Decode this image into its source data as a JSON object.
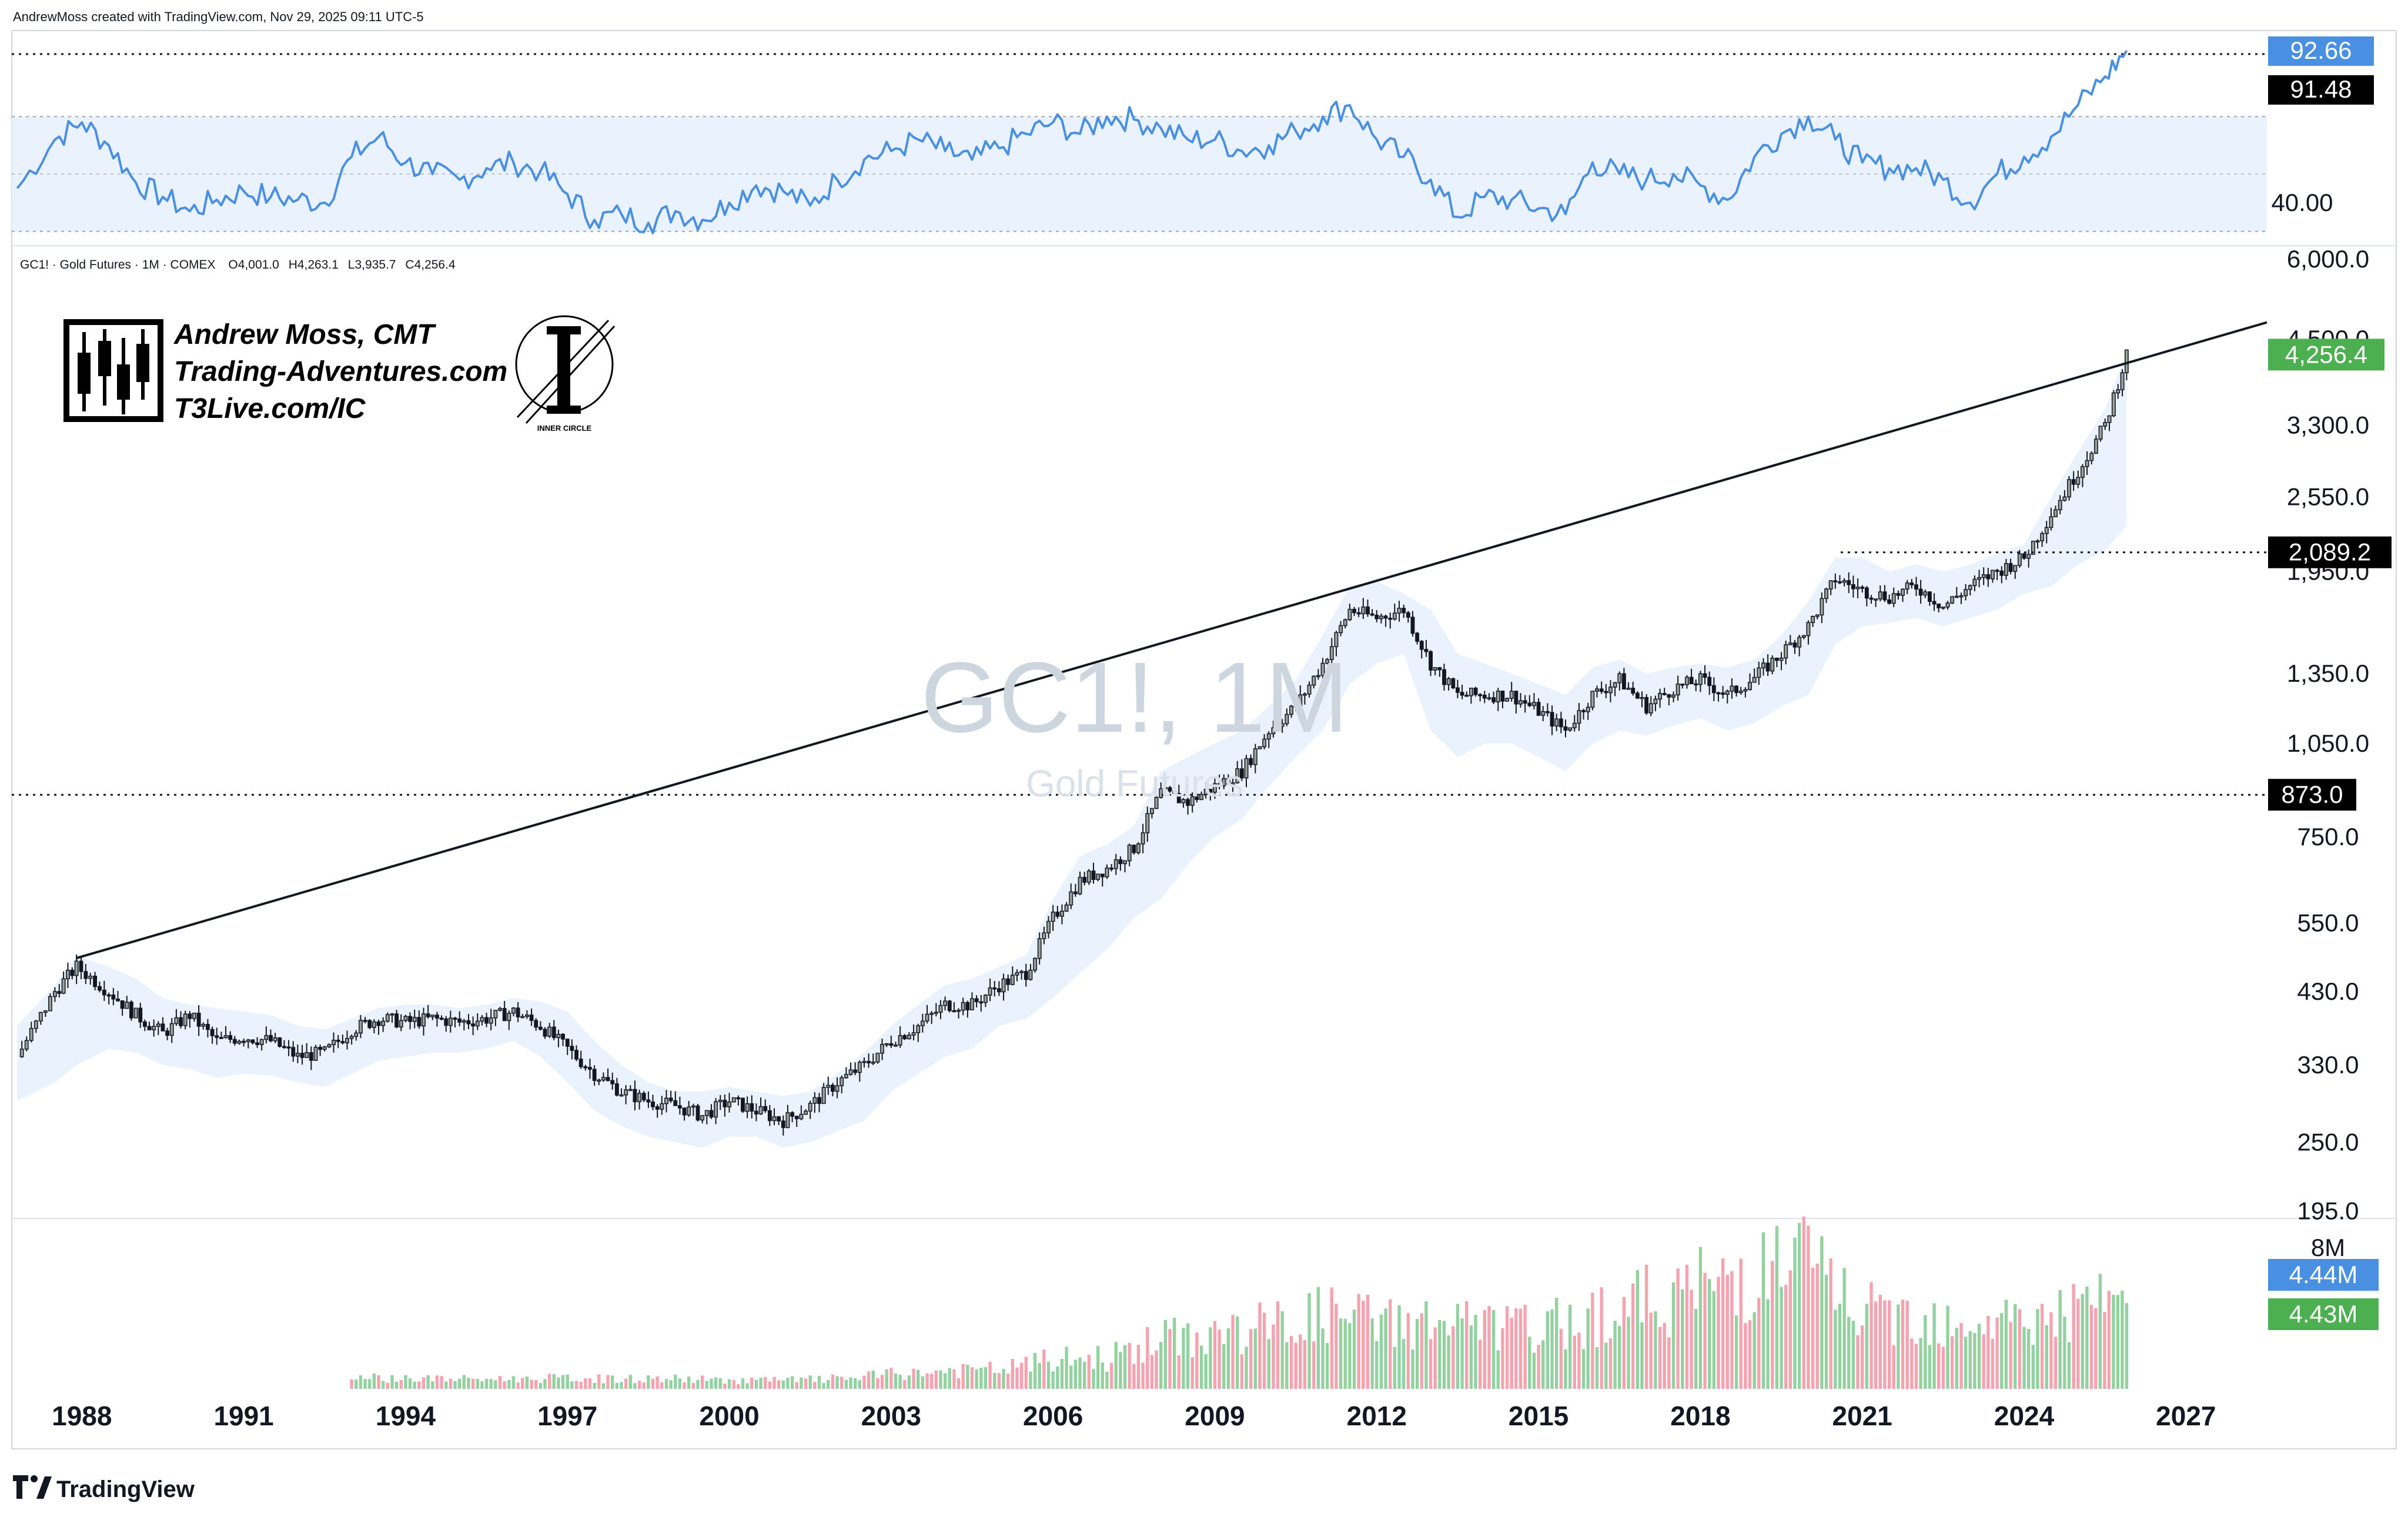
{
  "header": {
    "credit": "AndrewMoss created with TradingView.com, Nov 29, 2025 09:11 UTC-5"
  },
  "symbol_info": {
    "symbol": "GC1!",
    "description": "Gold Futures",
    "interval": "1M",
    "exchange": "COMEX",
    "open_label": "O",
    "open": "4,001.0",
    "high_label": "H",
    "high": "4,263.1",
    "low_label": "L",
    "low": "3,935.7",
    "close_label": "C",
    "close": "4,256.4",
    "line": "GC1! · Gold Futures · 1M · COMEX"
  },
  "watermark": {
    "title": "GC1!, 1M",
    "subtitle": "Gold Futures"
  },
  "branding": {
    "name": "Andrew Moss, CMT",
    "site": "Trading-Adventures.com",
    "site2": "T3Live.com/IC",
    "badge_caption": "INNER CIRCLE",
    "footer_logo": "TradingView"
  },
  "colors": {
    "up": "#26a69a",
    "down": "#ef5350",
    "vol_up": "#93d2a0",
    "vol_down": "#f5a3b0",
    "rsi_line": "#4a90e2",
    "band_fill": "#eaf2fd",
    "price_badge": "#4caf50",
    "rsi_badge": "#4a90e2",
    "level_badge": "#000000"
  },
  "chart_data": [
    {
      "type": "line",
      "panel": "rsi",
      "y_ticks": [
        "40.00"
      ],
      "ylim": [
        25,
        100
      ],
      "levels": [
        70,
        50,
        30
      ],
      "current_badges": [
        "92.66",
        "91.48"
      ],
      "series": [
        {
          "x": [
            1986.8,
            1987.5,
            1988.0,
            1988.5,
            1989.0,
            1989.5,
            1990.0,
            1990.5,
            1991.0,
            1991.5,
            1992.0,
            1992.5,
            1993.0,
            1993.5,
            1994.0,
            1994.5,
            1995.0,
            1995.5,
            1996.0,
            1996.5,
            1997.0,
            1997.5,
            1998.0,
            1998.5,
            1999.0,
            1999.5,
            2000.0,
            2000.5,
            2001.0,
            2001.5,
            2002.0,
            2002.5,
            2003.0,
            2003.5,
            2004.0,
            2004.5,
            2005.0,
            2005.5,
            2006.0,
            2006.5,
            2007.0,
            2007.5,
            2008.0,
            2008.5,
            2009.0,
            2009.5,
            2010.0,
            2010.5,
            2011.0,
            2011.5,
            2012.0,
            2012.5,
            2013.0,
            2013.5,
            2014.0,
            2014.5,
            2015.0,
            2015.5,
            2016.0,
            2016.5,
            2017.0,
            2017.5,
            2018.0,
            2018.5,
            2019.0,
            2019.5,
            2020.0,
            2020.5,
            2021.0,
            2021.5,
            2022.0,
            2022.5,
            2023.0,
            2023.5,
            2024.0,
            2024.5,
            2025.0,
            2025.5,
            2025.9
          ],
          "values": [
            45,
            62,
            68,
            60,
            47,
            42,
            37,
            41,
            44,
            42,
            41,
            40,
            56,
            63,
            54,
            50,
            48,
            52,
            54,
            51,
            43,
            34,
            36,
            33,
            37,
            34,
            40,
            46,
            44,
            39,
            48,
            55,
            58,
            62,
            58,
            55,
            59,
            64,
            68,
            64,
            70,
            69,
            66,
            62,
            62,
            58,
            60,
            65,
            70,
            74,
            62,
            56,
            48,
            35,
            42,
            41,
            38,
            36,
            54,
            50,
            48,
            50,
            46,
            41,
            56,
            64,
            70,
            62,
            54,
            52,
            52,
            48,
            40,
            50,
            56,
            63,
            74,
            84,
            93
          ]
        }
      ]
    },
    {
      "type": "candlestick",
      "panel": "price",
      "scale": "log",
      "title": "",
      "xlabel": "",
      "ylabel": "",
      "x_ticks": [
        "1988",
        "1991",
        "1994",
        "1997",
        "2000",
        "2003",
        "2006",
        "2009",
        "2012",
        "2015",
        "2018",
        "2021",
        "2024",
        "2027"
      ],
      "xlim": [
        1986.7,
        2028.5
      ],
      "y_ticks": [
        "6,000.0",
        "4,500.0",
        "3,300.0",
        "2,550.0",
        "1,950.0",
        "1,350.0",
        "1,050.0",
        "750.0",
        "550.0",
        "430.0",
        "330.0",
        "250.0",
        "195.0"
      ],
      "ylim": [
        190,
        6300
      ],
      "current_price": "4,256.4",
      "levels": [
        {
          "label": "2,089.2",
          "value": 2089.2
        },
        {
          "label": "873.0",
          "value": 873.0
        }
      ],
      "trendline": [
        [
          1987.9,
          485
        ],
        [
          2028.5,
          4780
        ]
      ],
      "x": [
        1986.8,
        1987.5,
        1987.9,
        1988.5,
        1989.0,
        1989.5,
        1990.0,
        1990.5,
        1991.0,
        1991.5,
        1992.0,
        1992.5,
        1993.0,
        1993.5,
        1994.0,
        1994.5,
        1995.0,
        1995.5,
        1996.0,
        1996.5,
        1997.0,
        1997.5,
        1998.0,
        1998.5,
        1999.0,
        1999.5,
        2000.0,
        2000.5,
        2001.0,
        2001.5,
        2002.0,
        2002.5,
        2003.0,
        2003.5,
        2004.0,
        2004.5,
        2005.0,
        2005.5,
        2006.0,
        2006.5,
        2007.0,
        2007.5,
        2008.0,
        2008.5,
        2009.0,
        2009.5,
        2010.0,
        2010.5,
        2011.0,
        2011.5,
        2012.0,
        2012.5,
        2013.0,
        2013.5,
        2014.0,
        2014.5,
        2015.0,
        2015.5,
        2016.0,
        2016.5,
        2017.0,
        2017.5,
        2018.0,
        2018.5,
        2019.0,
        2019.5,
        2020.0,
        2020.5,
        2021.0,
        2021.5,
        2022.0,
        2022.5,
        2023.0,
        2023.5,
        2024.0,
        2024.5,
        2025.0,
        2025.5,
        2025.9
      ],
      "close": [
        340,
        430,
        470,
        430,
        395,
        370,
        395,
        360,
        365,
        360,
        340,
        345,
        375,
        390,
        385,
        390,
        385,
        390,
        400,
        380,
        350,
        320,
        300,
        290,
        285,
        275,
        290,
        280,
        270,
        285,
        310,
        330,
        360,
        380,
        410,
        410,
        440,
        460,
        560,
        640,
        670,
        720,
        880,
        850,
        900,
        950,
        1100,
        1200,
        1400,
        1700,
        1650,
        1700,
        1400,
        1250,
        1250,
        1250,
        1180,
        1100,
        1250,
        1320,
        1200,
        1280,
        1320,
        1250,
        1330,
        1450,
        1600,
        1900,
        1820,
        1780,
        1850,
        1720,
        1850,
        1950,
        2050,
        2400,
        2800,
        3300,
        4256.4
      ],
      "band_upper": [
        380,
        440,
        490,
        470,
        450,
        420,
        410,
        405,
        400,
        395,
        380,
        375,
        390,
        405,
        410,
        410,
        405,
        410,
        420,
        415,
        400,
        360,
        330,
        310,
        300,
        300,
        305,
        300,
        295,
        300,
        320,
        345,
        380,
        410,
        440,
        450,
        470,
        490,
        600,
        700,
        730,
        780,
        950,
        1000,
        1050,
        1100,
        1200,
        1320,
        1550,
        1850,
        1880,
        1800,
        1700,
        1450,
        1400,
        1350,
        1300,
        1250,
        1380,
        1420,
        1350,
        1380,
        1400,
        1380,
        1420,
        1550,
        1750,
        2050,
        2050,
        1950,
        2000,
        1950,
        2000,
        2080,
        2150,
        2550,
        3000,
        3500,
        4300
      ],
      "band_lower": [
        290,
        310,
        330,
        350,
        345,
        330,
        325,
        315,
        320,
        318,
        310,
        305,
        320,
        335,
        340,
        345,
        345,
        350,
        360,
        340,
        310,
        280,
        265,
        255,
        250,
        245,
        255,
        255,
        245,
        250,
        260,
        270,
        300,
        320,
        340,
        350,
        380,
        390,
        420,
        460,
        500,
        560,
        600,
        680,
        750,
        800,
        900,
        1000,
        1100,
        1300,
        1400,
        1450,
        1100,
        1000,
        1050,
        1050,
        1000,
        950,
        1050,
        1100,
        1080,
        1120,
        1150,
        1100,
        1130,
        1200,
        1250,
        1500,
        1600,
        1620,
        1650,
        1600,
        1650,
        1700,
        1800,
        1850,
        2000,
        2100,
        2300
      ]
    },
    {
      "type": "bar",
      "panel": "volume",
      "y_ticks": [
        "8M"
      ],
      "ylim": [
        0,
        8500000
      ],
      "current_badges": [
        "4.44M",
        "4.43M"
      ],
      "x": [
        1993.0,
        1994.0,
        1995.0,
        1996.0,
        1997.0,
        1998.0,
        1999.0,
        2000.0,
        2001.0,
        2002.0,
        2003.0,
        2004.0,
        2005.0,
        2006.0,
        2007.0,
        2008.0,
        2009.0,
        2010.0,
        2011.0,
        2012.0,
        2013.0,
        2014.0,
        2015.0,
        2016.0,
        2017.0,
        2018.0,
        2019.0,
        2020.0,
        2021.0,
        2022.0,
        2023.0,
        2024.0,
        2025.0,
        2025.9
      ],
      "values": [
        600000,
        550000,
        500000,
        520000,
        550000,
        500000,
        520000,
        450000,
        450000,
        520000,
        750000,
        900000,
        1000000,
        1500000,
        1600000,
        2500000,
        2800000,
        3200000,
        3800000,
        3500000,
        3400000,
        3200000,
        3000000,
        3800000,
        4500000,
        5200000,
        6000000,
        6600000,
        3800000,
        3800000,
        3600000,
        3500000,
        4000000,
        4430000
      ]
    }
  ],
  "time_axis": {
    "labels": [
      "1988",
      "1991",
      "1994",
      "1997",
      "2000",
      "2003",
      "2006",
      "2009",
      "2012",
      "2015",
      "2018",
      "2021",
      "2024",
      "2027"
    ]
  }
}
